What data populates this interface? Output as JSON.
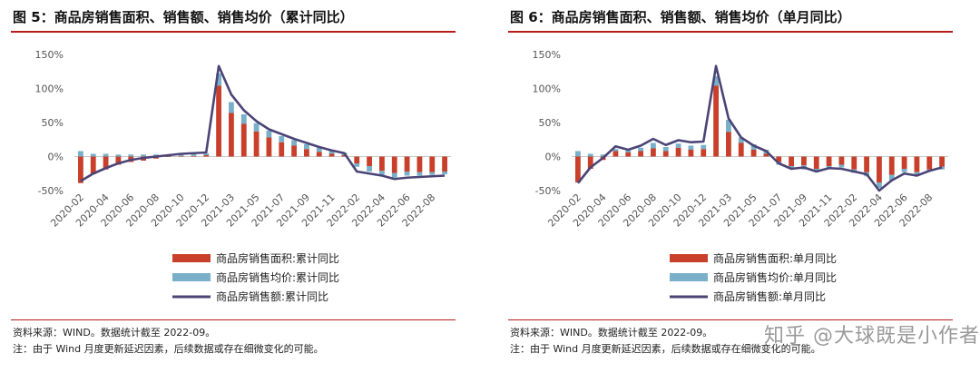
{
  "charts": [
    {
      "title": "图 5：商品房销售面积、销售额、销售均价（累计同比）",
      "source": "资料来源：WIND。数据统计截至 2022-09。",
      "note": "注：由于 Wind 月度更新延迟因素，后续数据或存在细微变化的可能。",
      "watermark": ""
    },
    {
      "title": "图 6：商品房销售面积、销售额、销售均价（单月同比）",
      "source": "资料来源：WIND。数据统计截至 2022-09。",
      "note": "注：由于 Wind 月度更新延迟因素，后续数据或存在细微变化的可能。",
      "watermark": "知乎 @大球既是小作者"
    }
  ],
  "chart_data": [
    {
      "type": "bar",
      "combo": "stacked-bar + line",
      "ylim": [
        -50,
        150
      ],
      "yticks": [
        "150%",
        "100%",
        "50%",
        "0%",
        "-50%"
      ],
      "ytick_values": [
        150,
        100,
        50,
        0,
        -50
      ],
      "x_tick_labels": [
        "2020-02",
        "2020-04",
        "2020-06",
        "2020-08",
        "2020-10",
        "2020-12",
        "2021-03",
        "2021-05",
        "2021-07",
        "2021-09",
        "2021-11",
        "2022-02",
        "2022-04",
        "2022-06",
        "2022-08"
      ],
      "x_tick_index": [
        0,
        2,
        4,
        6,
        8,
        10,
        12,
        14,
        16,
        18,
        20,
        22,
        24,
        26,
        28
      ],
      "x": [
        "2020-02",
        "2020-03",
        "2020-04",
        "2020-05",
        "2020-06",
        "2020-07",
        "2020-08",
        "2020-09",
        "2020-10",
        "2020-11",
        "2020-12",
        "2021-02",
        "2021-03",
        "2021-04",
        "2021-05",
        "2021-06",
        "2021-07",
        "2021-08",
        "2021-09",
        "2021-10",
        "2021-11",
        "2021-12",
        "2022-02",
        "2022-03",
        "2022-04",
        "2022-05",
        "2022-06",
        "2022-07",
        "2022-08",
        "2022-09"
      ],
      "series": [
        {
          "name": "商品房销售面积:累计同比",
          "kind": "bar",
          "color": "#c8402b",
          "values": [
            -39,
            -26,
            -19,
            -12,
            -8,
            -6,
            -3,
            0,
            1,
            1,
            2,
            104,
            64,
            48,
            37,
            28,
            21,
            16,
            11,
            7,
            4,
            2,
            -10,
            -14,
            -21,
            -24,
            -22,
            -23,
            -23,
            -22
          ]
        },
        {
          "name": "商品房销售均价:累计同比",
          "kind": "bar",
          "color": "#79afc8",
          "values": [
            8,
            4,
            4,
            3,
            3,
            3,
            3,
            3,
            3,
            3,
            3,
            18,
            16,
            14,
            12,
            10,
            9,
            8,
            7,
            6,
            5,
            4,
            -5,
            -8,
            -7,
            -7,
            -6,
            -5,
            -4,
            -4
          ]
        },
        {
          "name": "商品房销售额:累计同比",
          "kind": "line",
          "color": "#4b4476",
          "values": [
            -36,
            -25,
            -17,
            -10,
            -5,
            -2,
            0,
            2,
            4,
            5,
            6,
            133,
            91,
            68,
            52,
            40,
            33,
            26,
            20,
            14,
            9,
            5,
            -22,
            -25,
            -28,
            -33,
            -31,
            -30,
            -29,
            -28
          ]
        }
      ]
    },
    {
      "type": "bar",
      "combo": "stacked-bar + line",
      "ylim": [
        -50,
        150
      ],
      "yticks": [
        "150%",
        "100%",
        "50%",
        "0%",
        "-50%"
      ],
      "ytick_values": [
        150,
        100,
        50,
        0,
        -50
      ],
      "x_tick_labels": [
        "2020-02",
        "2020-04",
        "2020-06",
        "2020-08",
        "2020-10",
        "2020-12",
        "2021-03",
        "2021-05",
        "2021-07",
        "2021-09",
        "2021-11",
        "2022-02",
        "2022-04",
        "2022-06",
        "2022-08"
      ],
      "x_tick_index": [
        0,
        2,
        4,
        6,
        8,
        10,
        12,
        14,
        16,
        18,
        20,
        22,
        24,
        26,
        28
      ],
      "x": [
        "2020-02",
        "2020-03",
        "2020-04",
        "2020-05",
        "2020-06",
        "2020-07",
        "2020-08",
        "2020-09",
        "2020-10",
        "2020-11",
        "2020-12",
        "2021-02",
        "2021-03",
        "2021-04",
        "2021-05",
        "2021-06",
        "2021-07",
        "2021-08",
        "2021-09",
        "2021-10",
        "2021-11",
        "2021-12",
        "2022-02",
        "2022-03",
        "2022-04",
        "2022-05",
        "2022-06",
        "2022-07",
        "2022-08",
        "2022-09"
      ],
      "series": [
        {
          "name": "商品房销售面积:单月同比",
          "kind": "bar",
          "color": "#c8402b",
          "values": [
            -38,
            -18,
            -5,
            8,
            6,
            8,
            12,
            8,
            13,
            10,
            11,
            104,
            36,
            20,
            10,
            4,
            -8,
            -14,
            -13,
            -18,
            -14,
            -12,
            -19,
            -23,
            -38,
            -27,
            -18,
            -23,
            -19,
            -15
          ]
        },
        {
          "name": "商品房销售均价:单月同比",
          "kind": "bar",
          "color": "#79afc8",
          "values": [
            8,
            4,
            3,
            3,
            3,
            5,
            8,
            6,
            6,
            6,
            6,
            14,
            18,
            8,
            8,
            6,
            -4,
            -4,
            -6,
            -4,
            -4,
            -4,
            -5,
            -6,
            -8,
            -8,
            -5,
            -4,
            -3,
            -4
          ]
        },
        {
          "name": "商品房销售额:单月同比",
          "kind": "line",
          "color": "#4b4476",
          "values": [
            -39,
            -16,
            -2,
            15,
            10,
            16,
            26,
            17,
            24,
            21,
            22,
            133,
            56,
            28,
            16,
            8,
            -10,
            -18,
            -16,
            -22,
            -17,
            -18,
            -22,
            -26,
            -50,
            -35,
            -25,
            -28,
            -21,
            -16
          ]
        }
      ]
    }
  ]
}
